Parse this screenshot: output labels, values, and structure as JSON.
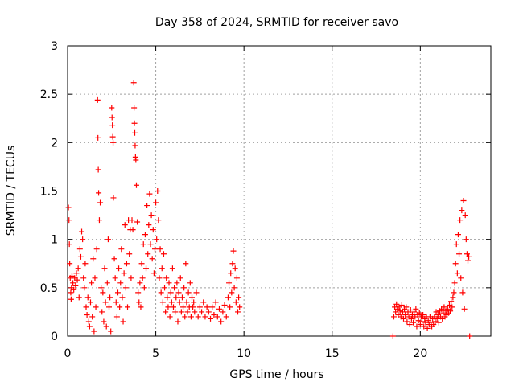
{
  "chart_data": {
    "type": "scatter",
    "title": "Day 358 of 2024, SRMTID for receiver savo",
    "xlabel": "GPS time / hours",
    "ylabel": "SRMTID / TECUs",
    "xlim": [
      0,
      24
    ],
    "ylim": [
      0,
      3
    ],
    "xticks": [
      "0",
      "5",
      "10",
      "15",
      "20"
    ],
    "yticks": [
      "0",
      "0.5",
      "1",
      "1.5",
      "2",
      "2.5",
      "3"
    ],
    "grid": true,
    "marker": "+",
    "color": "#ff0000",
    "series": [
      {
        "name": "SRMTID",
        "points": [
          [
            0.05,
            1.33
          ],
          [
            0.08,
            1.2
          ],
          [
            0.1,
            0.95
          ],
          [
            0.12,
            0.75
          ],
          [
            0.15,
            0.6
          ],
          [
            0.18,
            0.45
          ],
          [
            0.2,
            0.38
          ],
          [
            0.22,
            0.5
          ],
          [
            0.25,
            0.62
          ],
          [
            0.3,
            0.55
          ],
          [
            0.35,
            0.48
          ],
          [
            0.4,
            0.6
          ],
          [
            0.45,
            0.52
          ],
          [
            0.5,
            0.65
          ],
          [
            0.55,
            0.58
          ],
          [
            0.6,
            0.7
          ],
          [
            0.65,
            0.4
          ],
          [
            0.7,
            0.9
          ],
          [
            0.75,
            0.82
          ],
          [
            0.8,
            1.08
          ],
          [
            0.85,
            1.0
          ],
          [
            0.9,
            0.6
          ],
          [
            0.95,
            0.5
          ],
          [
            1.0,
            0.75
          ],
          [
            1.05,
            0.3
          ],
          [
            1.1,
            0.22
          ],
          [
            1.15,
            0.4
          ],
          [
            1.2,
            0.15
          ],
          [
            1.25,
            0.1
          ],
          [
            1.3,
            0.35
          ],
          [
            1.35,
            0.55
          ],
          [
            1.4,
            0.2
          ],
          [
            1.45,
            0.8
          ],
          [
            1.5,
            0.05
          ],
          [
            1.55,
            0.6
          ],
          [
            1.6,
            0.3
          ],
          [
            1.65,
            0.9
          ],
          [
            1.7,
            2.44
          ],
          [
            1.72,
            2.05
          ],
          [
            1.74,
            1.72
          ],
          [
            1.76,
            1.48
          ],
          [
            1.8,
            1.2
          ],
          [
            1.85,
            1.38
          ],
          [
            1.9,
            0.5
          ],
          [
            1.95,
            0.25
          ],
          [
            2.0,
            0.45
          ],
          [
            2.05,
            0.15
          ],
          [
            2.1,
            0.7
          ],
          [
            2.15,
            0.35
          ],
          [
            2.2,
            0.1
          ],
          [
            2.25,
            0.55
          ],
          [
            2.3,
            1.0
          ],
          [
            2.35,
            0.3
          ],
          [
            2.4,
            0.4
          ],
          [
            2.45,
            0.05
          ],
          [
            2.5,
            2.36
          ],
          [
            2.52,
            2.26
          ],
          [
            2.54,
            2.18
          ],
          [
            2.56,
            2.06
          ],
          [
            2.58,
            2.0
          ],
          [
            2.6,
            1.43
          ],
          [
            2.65,
            0.8
          ],
          [
            2.7,
            0.6
          ],
          [
            2.75,
            0.35
          ],
          [
            2.8,
            0.2
          ],
          [
            2.85,
            0.45
          ],
          [
            2.9,
            0.7
          ],
          [
            2.95,
            0.3
          ],
          [
            3.0,
            0.55
          ],
          [
            3.05,
            0.9
          ],
          [
            3.1,
            0.4
          ],
          [
            3.15,
            0.15
          ],
          [
            3.2,
            0.65
          ],
          [
            3.25,
            1.15
          ],
          [
            3.3,
            0.5
          ],
          [
            3.35,
            0.75
          ],
          [
            3.4,
            0.3
          ],
          [
            3.45,
            1.2
          ],
          [
            3.5,
            0.85
          ],
          [
            3.55,
            1.1
          ],
          [
            3.6,
            0.6
          ],
          [
            3.65,
            1.2
          ],
          [
            3.7,
            1.1
          ],
          [
            3.75,
            2.62
          ],
          [
            3.77,
            2.36
          ],
          [
            3.79,
            2.2
          ],
          [
            3.81,
            2.1
          ],
          [
            3.83,
            1.97
          ],
          [
            3.85,
            1.85
          ],
          [
            3.87,
            1.82
          ],
          [
            3.9,
            1.56
          ],
          [
            3.95,
            1.18
          ],
          [
            4.0,
            0.45
          ],
          [
            4.05,
            0.35
          ],
          [
            4.1,
            0.55
          ],
          [
            4.15,
            0.3
          ],
          [
            4.2,
            0.75
          ],
          [
            4.25,
            0.6
          ],
          [
            4.3,
            0.95
          ],
          [
            4.35,
            0.5
          ],
          [
            4.4,
            1.05
          ],
          [
            4.45,
            0.7
          ],
          [
            4.5,
            1.35
          ],
          [
            4.55,
            0.85
          ],
          [
            4.6,
            1.15
          ],
          [
            4.65,
            1.47
          ],
          [
            4.7,
            0.95
          ],
          [
            4.75,
            1.25
          ],
          [
            4.8,
            0.8
          ],
          [
            4.85,
            1.1
          ],
          [
            4.9,
            0.65
          ],
          [
            4.95,
            0.9
          ],
          [
            5.0,
            1.38
          ],
          [
            5.05,
            1.0
          ],
          [
            5.1,
            1.5
          ],
          [
            5.15,
            1.2
          ],
          [
            5.2,
            0.6
          ],
          [
            5.25,
            0.9
          ],
          [
            5.3,
            0.45
          ],
          [
            5.35,
            0.7
          ],
          [
            5.4,
            0.35
          ],
          [
            5.45,
            0.85
          ],
          [
            5.5,
            0.5
          ],
          [
            5.55,
            0.25
          ],
          [
            5.6,
            0.6
          ],
          [
            5.65,
            0.4
          ],
          [
            5.7,
            0.3
          ],
          [
            5.75,
            0.55
          ],
          [
            5.8,
            0.2
          ],
          [
            5.85,
            0.45
          ],
          [
            5.9,
            0.35
          ],
          [
            5.95,
            0.7
          ],
          [
            6.0,
            0.3
          ],
          [
            6.05,
            0.5
          ],
          [
            6.1,
            0.25
          ],
          [
            6.15,
            0.4
          ],
          [
            6.2,
            0.55
          ],
          [
            6.25,
            0.15
          ],
          [
            6.3,
            0.45
          ],
          [
            6.35,
            0.35
          ],
          [
            6.4,
            0.6
          ],
          [
            6.45,
            0.25
          ],
          [
            6.5,
            0.4
          ],
          [
            6.55,
            0.3
          ],
          [
            6.6,
            0.5
          ],
          [
            6.65,
            0.2
          ],
          [
            6.7,
            0.75
          ],
          [
            6.75,
            0.35
          ],
          [
            6.8,
            0.25
          ],
          [
            6.85,
            0.45
          ],
          [
            6.9,
            0.3
          ],
          [
            6.95,
            0.55
          ],
          [
            7.0,
            0.2
          ],
          [
            7.05,
            0.4
          ],
          [
            7.1,
            0.3
          ],
          [
            7.15,
            0.35
          ],
          [
            7.2,
            0.25
          ],
          [
            7.3,
            0.45
          ],
          [
            7.4,
            0.2
          ],
          [
            7.5,
            0.3
          ],
          [
            7.6,
            0.25
          ],
          [
            7.7,
            0.35
          ],
          [
            7.8,
            0.2
          ],
          [
            7.9,
            0.3
          ],
          [
            8.0,
            0.25
          ],
          [
            8.1,
            0.18
          ],
          [
            8.2,
            0.3
          ],
          [
            8.3,
            0.22
          ],
          [
            8.4,
            0.35
          ],
          [
            8.5,
            0.2
          ],
          [
            8.6,
            0.28
          ],
          [
            8.7,
            0.15
          ],
          [
            8.8,
            0.25
          ],
          [
            8.9,
            0.32
          ],
          [
            9.0,
            0.2
          ],
          [
            9.1,
            0.4
          ],
          [
            9.15,
            0.55
          ],
          [
            9.2,
            0.3
          ],
          [
            9.25,
            0.65
          ],
          [
            9.3,
            0.45
          ],
          [
            9.35,
            0.75
          ],
          [
            9.4,
            0.88
          ],
          [
            9.45,
            0.5
          ],
          [
            9.5,
            0.7
          ],
          [
            9.55,
            0.35
          ],
          [
            9.6,
            0.6
          ],
          [
            9.65,
            0.25
          ],
          [
            9.7,
            0.4
          ],
          [
            9.75,
            0.3
          ],
          [
            18.45,
            0.0
          ],
          [
            18.5,
            0.2
          ],
          [
            18.55,
            0.3
          ],
          [
            18.6,
            0.25
          ],
          [
            18.65,
            0.33
          ],
          [
            18.7,
            0.28
          ],
          [
            18.75,
            0.22
          ],
          [
            18.8,
            0.3
          ],
          [
            18.85,
            0.26
          ],
          [
            18.9,
            0.2
          ],
          [
            18.95,
            0.32
          ],
          [
            19.0,
            0.25
          ],
          [
            19.05,
            0.18
          ],
          [
            19.1,
            0.28
          ],
          [
            19.15,
            0.22
          ],
          [
            19.2,
            0.3
          ],
          [
            19.25,
            0.15
          ],
          [
            19.3,
            0.25
          ],
          [
            19.35,
            0.2
          ],
          [
            19.4,
            0.12
          ],
          [
            19.45,
            0.27
          ],
          [
            19.5,
            0.18
          ],
          [
            19.55,
            0.22
          ],
          [
            19.6,
            0.14
          ],
          [
            19.65,
            0.25
          ],
          [
            19.7,
            0.2
          ],
          [
            19.75,
            0.28
          ],
          [
            19.8,
            0.1
          ],
          [
            19.85,
            0.22
          ],
          [
            19.9,
            0.16
          ],
          [
            19.95,
            0.24
          ],
          [
            20.0,
            0.12
          ],
          [
            20.05,
            0.2
          ],
          [
            20.1,
            0.15
          ],
          [
            20.15,
            0.22
          ],
          [
            20.2,
            0.1
          ],
          [
            20.25,
            0.18
          ],
          [
            20.3,
            0.14
          ],
          [
            20.35,
            0.2
          ],
          [
            20.4,
            0.08
          ],
          [
            20.45,
            0.16
          ],
          [
            20.5,
            0.12
          ],
          [
            20.55,
            0.2
          ],
          [
            20.6,
            0.14
          ],
          [
            20.65,
            0.1
          ],
          [
            20.7,
            0.18
          ],
          [
            20.75,
            0.12
          ],
          [
            20.8,
            0.2
          ],
          [
            20.85,
            0.15
          ],
          [
            20.9,
            0.25
          ],
          [
            20.95,
            0.18
          ],
          [
            21.0,
            0.22
          ],
          [
            21.05,
            0.14
          ],
          [
            21.1,
            0.26
          ],
          [
            21.15,
            0.2
          ],
          [
            21.2,
            0.28
          ],
          [
            21.25,
            0.18
          ],
          [
            21.3,
            0.24
          ],
          [
            21.35,
            0.3
          ],
          [
            21.4,
            0.2
          ],
          [
            21.45,
            0.26
          ],
          [
            21.5,
            0.22
          ],
          [
            21.55,
            0.28
          ],
          [
            21.6,
            0.24
          ],
          [
            21.65,
            0.32
          ],
          [
            21.7,
            0.26
          ],
          [
            21.75,
            0.36
          ],
          [
            21.8,
            0.3
          ],
          [
            21.85,
            0.4
          ],
          [
            21.9,
            0.45
          ],
          [
            21.95,
            0.55
          ],
          [
            22.0,
            0.75
          ],
          [
            22.05,
            0.95
          ],
          [
            22.1,
            0.65
          ],
          [
            22.15,
            1.05
          ],
          [
            22.2,
            0.85
          ],
          [
            22.25,
            1.2
          ],
          [
            22.3,
            0.6
          ],
          [
            22.35,
            1.3
          ],
          [
            22.4,
            0.45
          ],
          [
            22.45,
            1.4
          ],
          [
            22.5,
            0.28
          ],
          [
            22.55,
            1.25
          ],
          [
            22.6,
            1.0
          ],
          [
            22.65,
            0.85
          ],
          [
            22.7,
            0.78
          ],
          [
            22.75,
            0.82
          ],
          [
            22.8,
            0.0
          ]
        ]
      }
    ]
  }
}
